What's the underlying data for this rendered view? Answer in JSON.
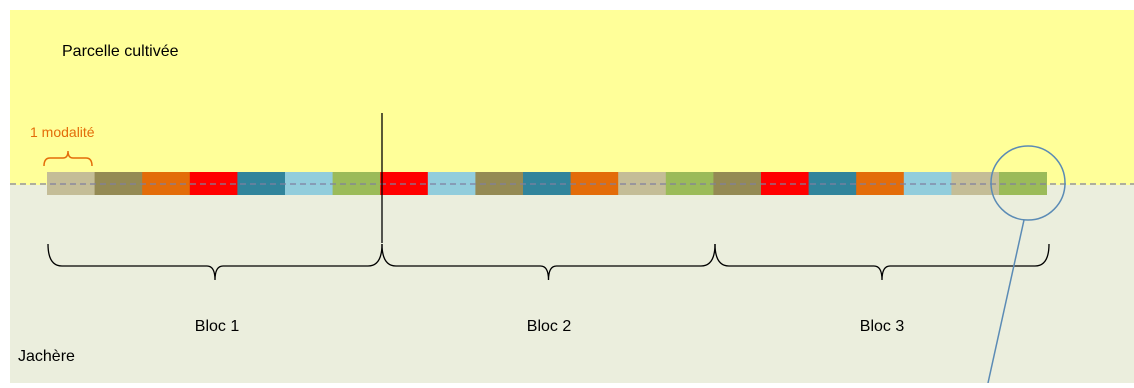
{
  "zones": {
    "cultivated_label": "Parcelle cultivée",
    "fallow_label": "Jachère",
    "cultivated_color": "#ffff99",
    "fallow_color": "#ebeedd"
  },
  "annotation": {
    "modality_label": "1 modalité",
    "modality_color": "#e36c09"
  },
  "colors": {
    "tan": "#c4bd97",
    "olive": "#948a54",
    "orange": "#e36c09",
    "red": "#ff0000",
    "teal": "#31849b",
    "light_blue": "#92cddc",
    "green": "#9bbb59",
    "divider_line": "#7f7f9f",
    "highlight_circle": "#5b8bb5"
  },
  "strip": [
    "tan",
    "olive",
    "orange",
    "red",
    "teal",
    "light_blue",
    "green",
    "red",
    "light_blue",
    "olive",
    "teal",
    "orange",
    "tan",
    "green",
    "olive",
    "red",
    "teal",
    "orange",
    "light_blue",
    "tan",
    "green"
  ],
  "blocs": [
    {
      "label": "Bloc 1"
    },
    {
      "label": "Bloc 2"
    },
    {
      "label": "Bloc 3"
    }
  ]
}
